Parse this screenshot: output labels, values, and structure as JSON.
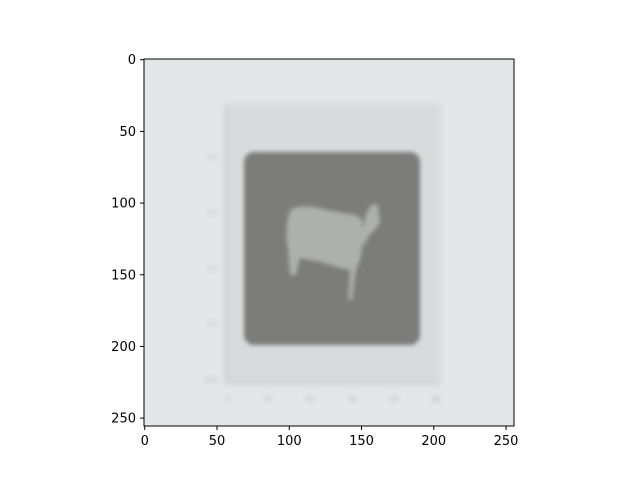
{
  "chart_data": {
    "type": "image",
    "title": "",
    "xlabel": "",
    "ylabel": "",
    "xlim": [
      -0.5,
      255.5
    ],
    "ylim": [
      255.5,
      -0.5
    ],
    "y_inverted": true,
    "grid": false,
    "legend": "none",
    "x_ticks": [
      {
        "value": 0,
        "label": "0"
      },
      {
        "value": 50,
        "label": "50"
      },
      {
        "value": 100,
        "label": "100"
      },
      {
        "value": 150,
        "label": "150"
      },
      {
        "value": 200,
        "label": "200"
      },
      {
        "value": 250,
        "label": "250"
      }
    ],
    "y_ticks": [
      {
        "value": 0,
        "label": "0"
      },
      {
        "value": 50,
        "label": "50"
      },
      {
        "value": 100,
        "label": "100"
      },
      {
        "value": 150,
        "label": "150"
      },
      {
        "value": 200,
        "label": "200"
      },
      {
        "value": 250,
        "label": "250"
      }
    ],
    "image_content": {
      "description_regions": [
        {
          "name": "background",
          "color": "#e4e6e8"
        },
        {
          "name": "inner-panel",
          "x": [
            55,
            205
          ],
          "y": [
            30,
            225
          ],
          "color": "#d8dbdc"
        },
        {
          "name": "dark-square",
          "x": [
            70,
            190
          ],
          "y": [
            65,
            198
          ],
          "color": "#7b7b79"
        }
      ],
      "icon": "cow-silhouette"
    }
  }
}
